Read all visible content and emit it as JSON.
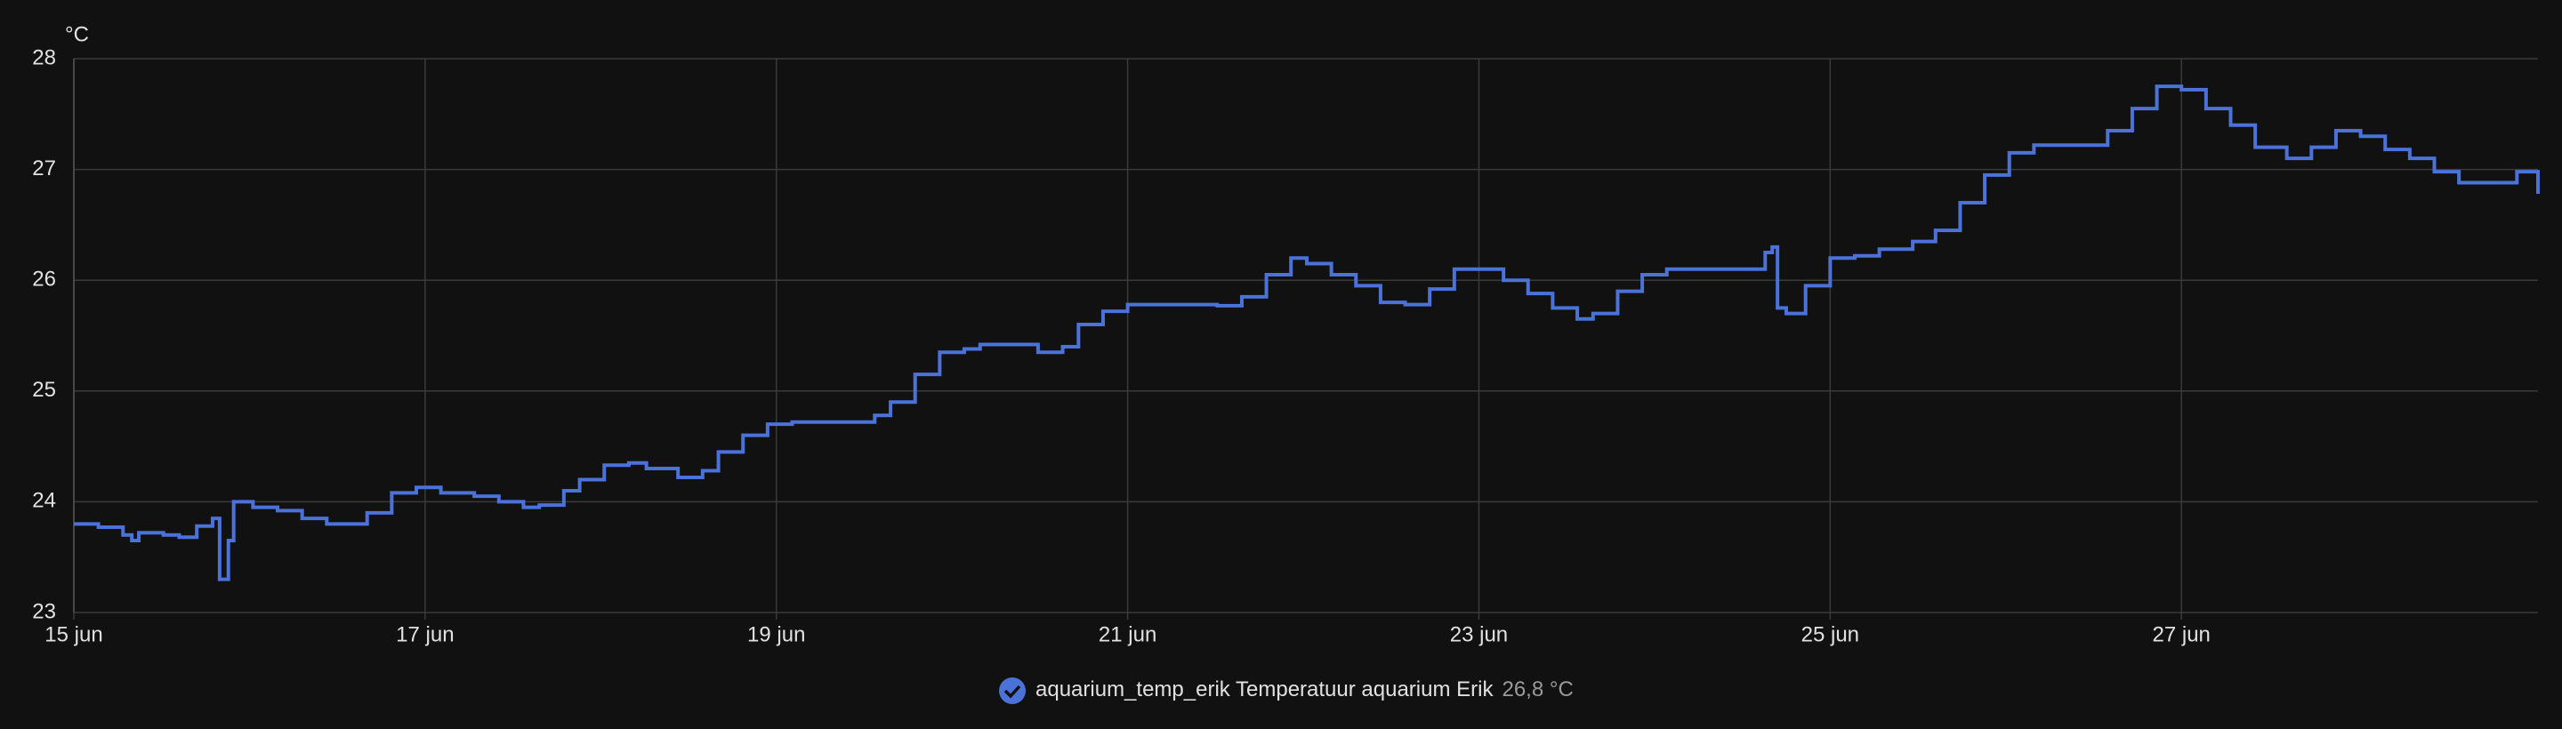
{
  "chart_data": {
    "type": "line",
    "y_unit": "°C",
    "x": [
      15.0,
      15.14,
      15.28,
      15.33,
      15.37,
      15.51,
      15.6,
      15.7,
      15.79,
      15.83,
      15.88,
      15.91,
      16.02,
      16.16,
      16.3,
      16.44,
      16.58,
      16.67,
      16.81,
      16.95,
      17.09,
      17.28,
      17.42,
      17.56,
      17.65,
      17.79,
      17.88,
      18.02,
      18.16,
      18.26,
      18.44,
      18.58,
      18.67,
      18.81,
      18.95,
      19.09,
      19.23,
      19.42,
      19.56,
      19.65,
      19.79,
      19.93,
      20.07,
      20.16,
      20.35,
      20.49,
      20.63,
      20.72,
      20.86,
      21.0,
      21.28,
      21.51,
      21.65,
      21.79,
      21.93,
      22.02,
      22.16,
      22.3,
      22.44,
      22.58,
      22.72,
      22.86,
      23.0,
      23.14,
      23.28,
      23.42,
      23.56,
      23.65,
      23.79,
      23.93,
      24.07,
      24.26,
      24.49,
      24.63,
      24.67,
      24.7,
      24.75,
      24.86,
      25.0,
      25.14,
      25.28,
      25.47,
      25.6,
      25.74,
      25.88,
      26.02,
      26.16,
      26.4,
      26.58,
      26.72,
      26.86,
      27.0,
      27.14,
      27.28,
      27.42,
      27.6,
      27.74,
      27.88,
      28.02,
      28.16,
      28.3,
      28.44,
      28.58,
      28.77,
      28.91,
      29.03
    ],
    "series": [
      {
        "name": "aquarium_temp_erik Temperatuur aquarium Erik",
        "color": "#4a72d9",
        "values": [
          23.8,
          23.77,
          23.7,
          23.65,
          23.72,
          23.7,
          23.68,
          23.78,
          23.85,
          23.3,
          23.65,
          24.0,
          23.95,
          23.92,
          23.85,
          23.8,
          23.8,
          23.9,
          24.08,
          24.13,
          24.08,
          24.05,
          24.0,
          23.95,
          23.97,
          24.1,
          24.2,
          24.33,
          24.35,
          24.3,
          24.22,
          24.28,
          24.45,
          24.6,
          24.7,
          24.72,
          24.72,
          24.72,
          24.78,
          24.9,
          25.15,
          25.35,
          25.38,
          25.42,
          25.42,
          25.35,
          25.4,
          25.6,
          25.72,
          25.78,
          25.78,
          25.77,
          25.85,
          26.05,
          26.2,
          26.15,
          26.05,
          25.95,
          25.8,
          25.78,
          25.92,
          26.1,
          26.1,
          26.0,
          25.88,
          25.75,
          25.65,
          25.7,
          25.9,
          26.05,
          26.1,
          26.1,
          26.1,
          26.25,
          26.3,
          25.75,
          25.7,
          25.95,
          26.2,
          26.22,
          26.28,
          26.35,
          26.45,
          26.7,
          26.95,
          27.15,
          27.22,
          27.22,
          27.35,
          27.55,
          27.75,
          27.72,
          27.55,
          27.4,
          27.2,
          27.1,
          27.2,
          27.35,
          27.3,
          27.18,
          27.1,
          26.98,
          26.88,
          26.88,
          26.98,
          26.78
        ]
      }
    ],
    "current_value_label": "26,8 °C",
    "xlim": [
      15,
      29.03
    ],
    "xticks": [
      {
        "value": 15,
        "label": "15 jun"
      },
      {
        "value": 17,
        "label": "17 jun"
      },
      {
        "value": 19,
        "label": "19 jun"
      },
      {
        "value": 21,
        "label": "21 jun"
      },
      {
        "value": 23,
        "label": "23 jun"
      },
      {
        "value": 25,
        "label": "25 jun"
      },
      {
        "value": 27,
        "label": "27 jun"
      }
    ],
    "ylim": [
      23,
      28
    ],
    "yticks": [
      23,
      24,
      25,
      26,
      27,
      28
    ],
    "grid": true,
    "step": true,
    "legend_position": "bottom"
  }
}
